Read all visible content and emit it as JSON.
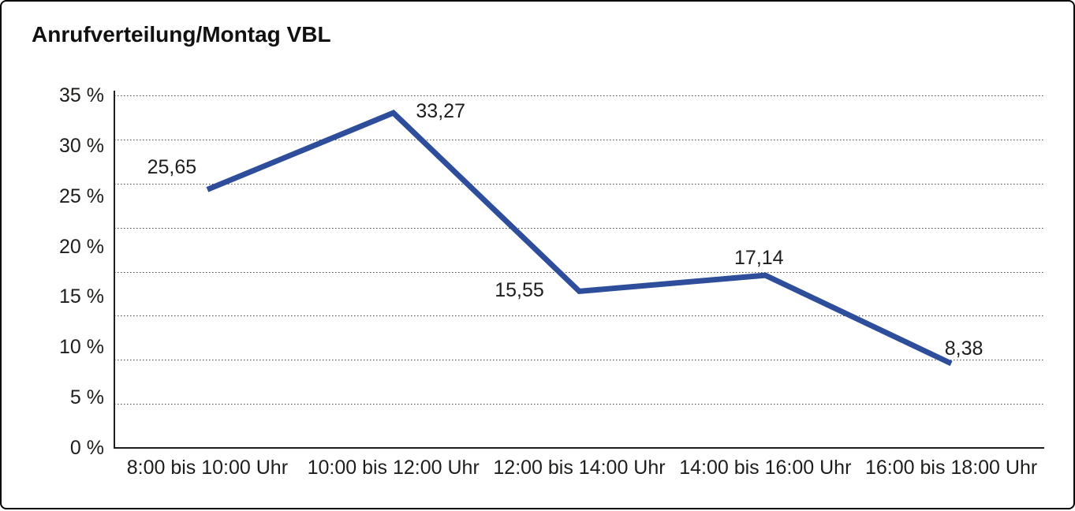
{
  "title": "Anrufverteilung/Montag VBL",
  "chart_data": {
    "type": "line",
    "title": "Anrufverteilung/Montag VBL",
    "categories": [
      "8:00 bis 10:00 Uhr",
      "10:00 bis 12:00 Uhr",
      "12:00 bis 14:00 Uhr",
      "14:00 bis 16:00 Uhr",
      "16:00 bis 18:00 Uhr"
    ],
    "values": [
      25.65,
      33.27,
      15.55,
      17.14,
      8.38
    ],
    "value_labels": [
      "25,65",
      "33,27",
      "15,55",
      "17,14",
      "8,38"
    ],
    "y_tick_labels": [
      "0 %",
      "5 %",
      "10 %",
      "15 %",
      "20 %",
      "25 %",
      "30 %",
      "35 %"
    ],
    "ylim": [
      0,
      35
    ],
    "y_tick_step": 5,
    "xlabel": "",
    "ylabel": "",
    "legend": "none",
    "grid": "horizontal-dotted",
    "line_color": "#2e4e9c",
    "axis_color": "#1d1d1b",
    "grid_color": "#4a4a4a"
  }
}
